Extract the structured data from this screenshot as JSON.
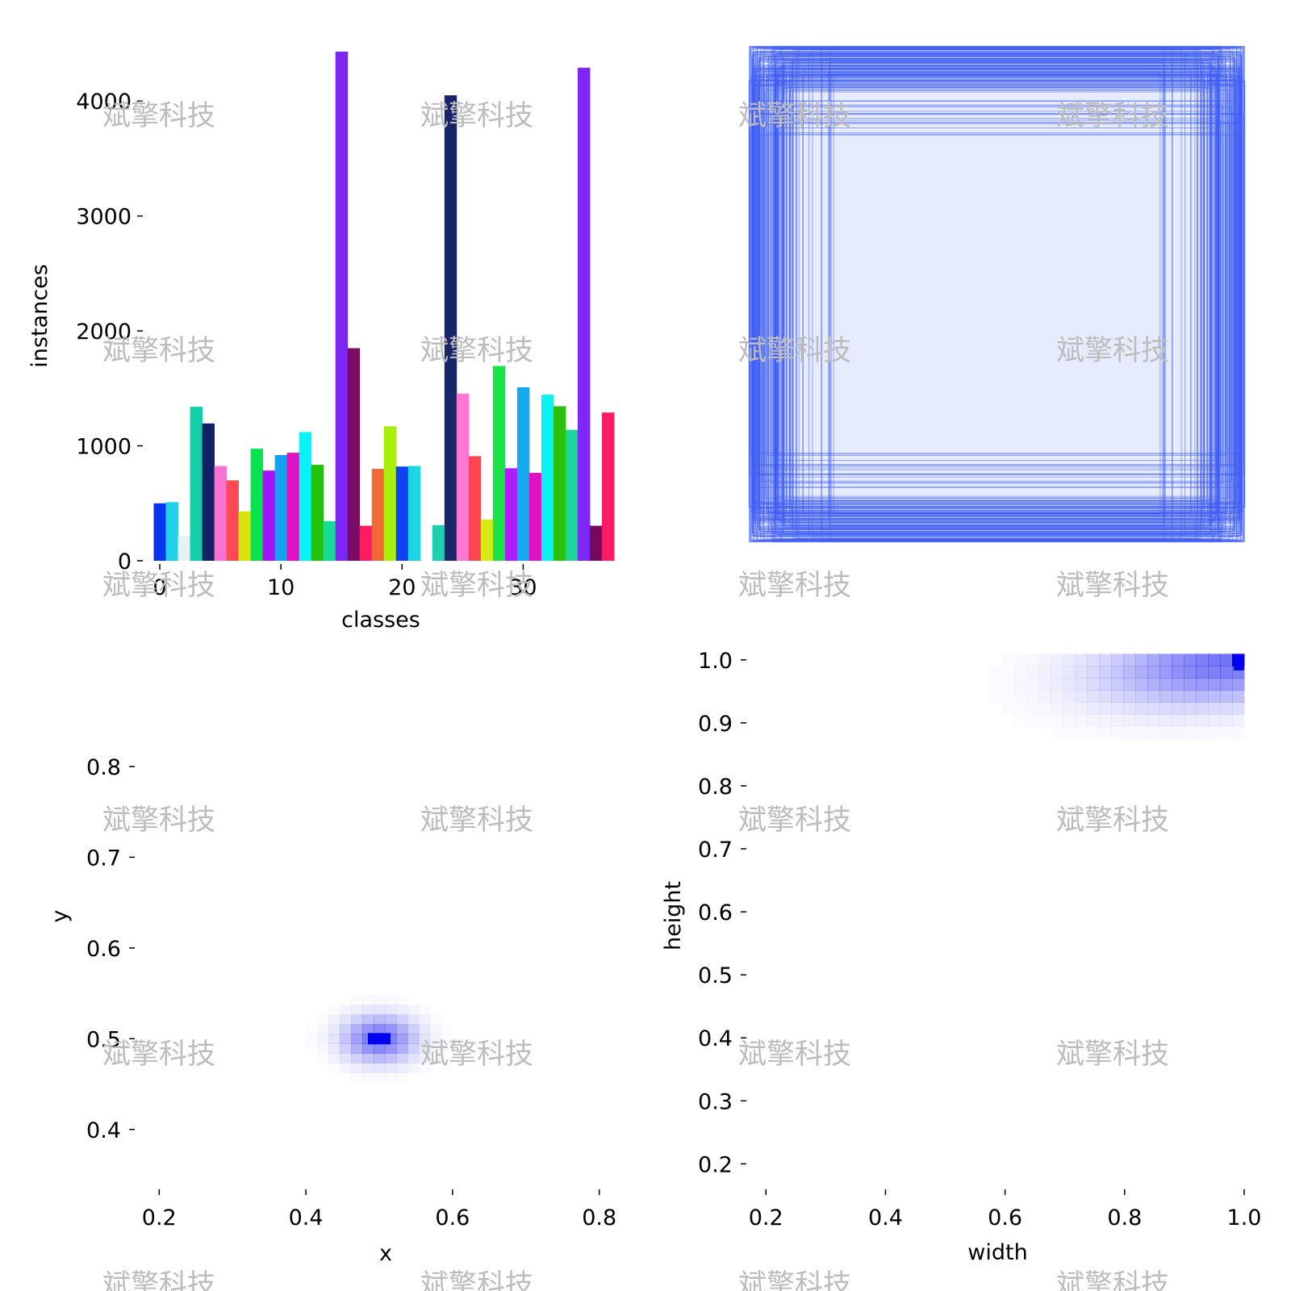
{
  "watermark_text": "斌擎科技",
  "chart_data": [
    {
      "id": "class-histogram",
      "type": "bar",
      "xlabel": "classes",
      "ylabel": "instances",
      "xlim": [
        -1,
        37.5
      ],
      "ylim": [
        0,
        4430
      ],
      "xticks": [
        0,
        10,
        20,
        30
      ],
      "yticks": [
        0,
        1000,
        2000,
        3000,
        4000
      ],
      "categories": [
        0,
        1,
        2,
        3,
        4,
        5,
        6,
        7,
        8,
        9,
        10,
        11,
        12,
        13,
        14,
        15,
        16,
        17,
        18,
        19,
        20,
        21,
        22,
        23,
        24,
        25,
        26,
        27,
        28,
        29,
        30,
        31,
        32,
        33,
        34,
        35,
        36,
        37
      ],
      "values": [
        500,
        510,
        215,
        1340,
        1195,
        825,
        700,
        430,
        975,
        785,
        920,
        940,
        1120,
        835,
        345,
        4430,
        1850,
        305,
        800,
        1170,
        820,
        825,
        0,
        310,
        4050,
        1455,
        910,
        360,
        1695,
        805,
        1510,
        765,
        1445,
        1345,
        1140,
        4290,
        305,
        1290
      ],
      "colors": [
        "#0a35f0",
        "#1fd0e6",
        "#e7f2f5",
        "#12cfa8",
        "#132266",
        "#f772d2",
        "#ff4a56",
        "#d9e30f",
        "#05e34e",
        "#a313f7",
        "#14a1f2",
        "#e011c2",
        "#07f3f8",
        "#23c10c",
        "#17dc96",
        "#7b26f3",
        "#7a0c66",
        "#fd1c62",
        "#f26a33",
        "#a8f00c",
        "#1041f2",
        "#1bd6e3",
        "#ffffff",
        "#1dcfae",
        "#1a2569",
        "#fd77d3",
        "#ff4550",
        "#d8ea13",
        "#1ce448",
        "#b01bfd",
        "#14a9f0",
        "#e013c4",
        "#0cf1f2",
        "#2bc20e",
        "#1ad69b",
        "#7d28f6",
        "#75085f",
        "#fb1c63"
      ]
    },
    {
      "id": "box-overlay",
      "type": "other",
      "description_free": true,
      "x_range": [
        0,
        1
      ],
      "y_range": [
        0,
        1
      ],
      "line_color": "#3a5af2"
    },
    {
      "id": "xy-density",
      "type": "heatmap",
      "xlabel": "x",
      "ylabel": "y",
      "xlim": [
        0.17,
        0.83
      ],
      "ylim": [
        0.35,
        0.92
      ],
      "xticks": [
        0.2,
        0.4,
        0.6,
        0.8
      ],
      "yticks": [
        0.4,
        0.5,
        0.6,
        0.7,
        0.8
      ],
      "peak": {
        "x": 0.5,
        "y": 0.5
      },
      "color": "#0000f0"
    },
    {
      "id": "wh-density",
      "type": "heatmap",
      "xlabel": "width",
      "ylabel": "height",
      "xlim": [
        0.17,
        1.0
      ],
      "ylim": [
        0.18,
        1.01
      ],
      "xticks": [
        0.2,
        0.4,
        0.6,
        0.8,
        1.0
      ],
      "yticks": [
        0.2,
        0.3,
        0.4,
        0.5,
        0.6,
        0.7,
        0.8,
        0.9,
        1.0
      ],
      "xtick_labels": [
        "0.2",
        "0.4",
        "0.6",
        "0.8",
        "1.0"
      ],
      "ytick_labels": [
        "0.2",
        "0.3",
        "0.4",
        "0.5",
        "0.6",
        "0.7",
        "0.8",
        "0.9",
        "1.0"
      ],
      "peak": {
        "x": 1.0,
        "y": 1.0
      },
      "color": "#0000f0"
    }
  ]
}
